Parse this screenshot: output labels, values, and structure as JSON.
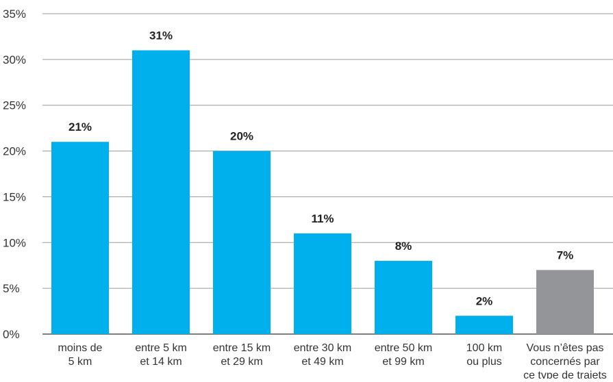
{
  "chart_data": {
    "type": "bar",
    "title": "",
    "xlabel": "",
    "ylabel": "",
    "ylim": [
      0,
      35
    ],
    "yticks": [
      "0%",
      "5%",
      "10%",
      "15%",
      "20%",
      "25%",
      "30%",
      "35%"
    ],
    "grid": true,
    "categories": [
      [
        "moins de",
        "5 km"
      ],
      [
        "entre 5 km",
        "et 14 km"
      ],
      [
        "entre 15 km",
        "et 29 km"
      ],
      [
        "entre 30 km",
        "et 49 km"
      ],
      [
        "entre 50 km",
        "et 99 km"
      ],
      [
        "100 km",
        "ou plus"
      ],
      [
        "Vous n’êtes pas",
        "concernés par",
        "ce type de trajets"
      ]
    ],
    "values": [
      21,
      31,
      20,
      11,
      8,
      2,
      7
    ],
    "data_labels": [
      "21%",
      "31%",
      "20%",
      "11%",
      "8%",
      "2%",
      "7%"
    ],
    "colors": [
      "#00b0ec",
      "#00b0ec",
      "#00b0ec",
      "#00b0ec",
      "#00b0ec",
      "#00b0ec",
      "#939598"
    ]
  },
  "colors": {
    "gridline": "#9a9a9a",
    "baseline": "#555555"
  }
}
